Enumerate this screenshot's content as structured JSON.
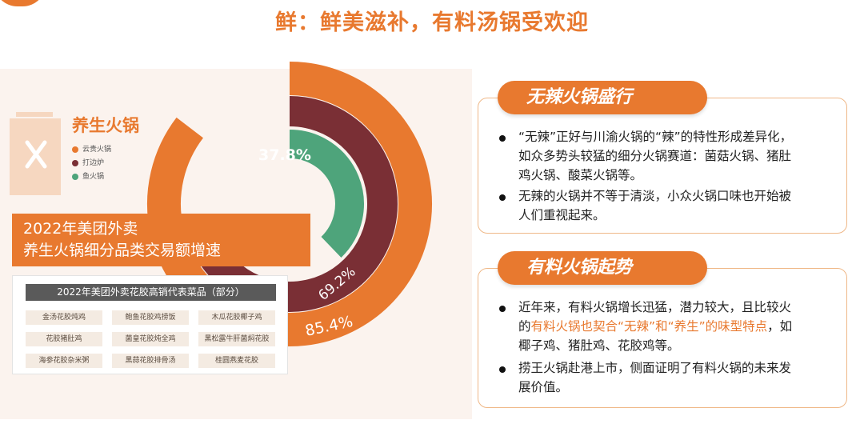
{
  "page_title": "鲜：鲜美滋补，有料汤锅受欢迎",
  "chart_data": {
    "type": "donut",
    "title": "养生火锅",
    "series": [
      {
        "name": "云贵火锅",
        "value": 85.4,
        "label": "85.4%",
        "color": "#e8792f"
      },
      {
        "name": "打边炉",
        "value": 69.2,
        "label": "69.2%",
        "color": "#7a2f35"
      },
      {
        "name": "鱼火锅",
        "value": 37.8,
        "label": "37.8%",
        "color": "#4ea47b"
      }
    ],
    "legend_position": "left"
  },
  "banner": {
    "line1": "2022年美团外卖",
    "line2": "养生火锅细分品类交易额增速"
  },
  "table": {
    "header": "2022年美团外卖花胶高销代表菜品（部分）",
    "rows": [
      [
        "金汤花胶炖鸡",
        "鲍鱼花胶鸡捞饭",
        "木瓜花胶椰子鸡"
      ],
      [
        "花胶猪肚鸡",
        "菌皇花胶炖全鸡",
        "黑松露牛肝菌焖花胶"
      ],
      [
        "海参花胶杂米粥",
        "黑蒜花胶排骨汤",
        "桂圆燕麦花胶"
      ]
    ]
  },
  "cards": [
    {
      "title": "无辣火锅盛行",
      "bullets": [
        [
          "“无辣”正好与川渝火锅的“辣”的特性形成差异化，",
          "如众多势头较猛的细分火锅赛道：菌菇火锅、猪肚",
          "鸡火锅、酸菜火锅等。"
        ],
        [
          "无辣的火锅并不等于清淡，小众火锅口味也开始被",
          "人们重视起来。"
        ]
      ]
    },
    {
      "title": "有料火锅起势",
      "b1_l1": "近年来，有料火锅增长迅猛，潜力较大，且比较火",
      "b1_l2_pre": "的",
      "b1_l2_hl": "有料火锅也契合“无辣”和“养生”的味型特点",
      "b1_l2_post": "，如",
      "b1_l3": "椰子鸡、猪肚鸡、花胶鸡等。",
      "b2_l1": "捞王火锅赴港上市，侧面证明了有料火锅的未来发",
      "b2_l2": "展价值。"
    }
  ]
}
